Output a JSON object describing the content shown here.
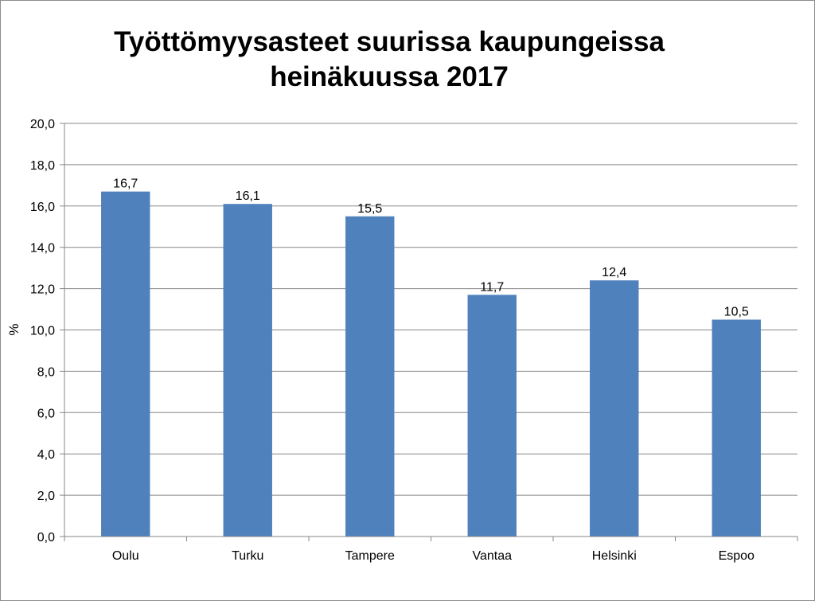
{
  "chart_data": {
    "type": "bar",
    "title_lines": [
      "Työttömyysasteet suurissa kaupungeissa",
      "heinäkuussa 2017"
    ],
    "ylabel": "%",
    "xlabel": "",
    "categories": [
      "Oulu",
      "Turku",
      "Tampere",
      "Vantaa",
      "Helsinki",
      "Espoo"
    ],
    "values": [
      16.7,
      16.1,
      15.5,
      11.7,
      12.4,
      10.5
    ],
    "data_labels": [
      "16,7",
      "16,1",
      "15,5",
      "11,7",
      "12,4",
      "10,5"
    ],
    "ylim": [
      0,
      20
    ],
    "yticks": [
      0,
      2,
      4,
      6,
      8,
      10,
      12,
      14,
      16,
      18,
      20
    ],
    "ytick_labels": [
      "0,0",
      "2,0",
      "4,0",
      "6,0",
      "8,0",
      "10,0",
      "12,0",
      "14,0",
      "16,0",
      "18,0",
      "20,0"
    ],
    "grid": true,
    "legend": "none",
    "bar_color": "#4f81bd",
    "grid_color": "#878787"
  }
}
